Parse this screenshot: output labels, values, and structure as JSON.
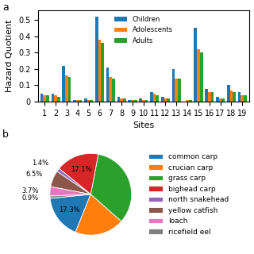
{
  "chart_data": [
    {
      "type": "bar",
      "annotation": "a",
      "xlabel": "Sites",
      "ylabel": "Hazard Quotient",
      "categories": [
        "1",
        "2",
        "3",
        "4",
        "5",
        "6",
        "7",
        "8",
        "9",
        "10",
        "11",
        "12",
        "13",
        "14",
        "15",
        "16",
        "17",
        "18",
        "19"
      ],
      "series": [
        {
          "name": "Children",
          "values": [
            0.05,
            0.05,
            0.22,
            0.01,
            0.02,
            0.52,
            0.21,
            0.03,
            0.01,
            0.02,
            0.06,
            0.03,
            0.2,
            0.0,
            0.45,
            0.08,
            0.03,
            0.1,
            0.06
          ]
        },
        {
          "name": "Adolescents",
          "values": [
            0.04,
            0.04,
            0.16,
            0.01,
            0.01,
            0.38,
            0.15,
            0.02,
            0.01,
            0.01,
            0.05,
            0.02,
            0.14,
            0.01,
            0.32,
            0.06,
            0.02,
            0.07,
            0.04
          ]
        },
        {
          "name": "Adults",
          "values": [
            0.04,
            0.03,
            0.15,
            0.01,
            0.01,
            0.36,
            0.14,
            0.02,
            0.01,
            0.01,
            0.04,
            0.02,
            0.14,
            0.01,
            0.3,
            0.06,
            0.02,
            0.06,
            0.04
          ]
        }
      ],
      "ylim": [
        0,
        0.56
      ],
      "yticks": [
        0,
        0.1,
        0.2,
        0.3,
        0.4,
        0.5
      ],
      "legend": "upper center"
    },
    {
      "type": "pie",
      "annotation": "b",
      "categories": [
        "common carp",
        "crucian carp",
        "grass carp",
        "bighead carp",
        "north snakehead",
        "yellow catfish",
        "loach",
        "ricefield eel"
      ],
      "values": [
        17.3,
        19.6,
        33.5,
        17.1,
        1.4,
        6.5,
        3.7,
        0.9
      ],
      "value_labels": [
        "17.3%",
        null,
        null,
        "17.1%",
        "1.4%",
        "6.5%",
        "3.7%",
        "0.9%"
      ],
      "data_labels": true,
      "legend": "center left"
    }
  ]
}
